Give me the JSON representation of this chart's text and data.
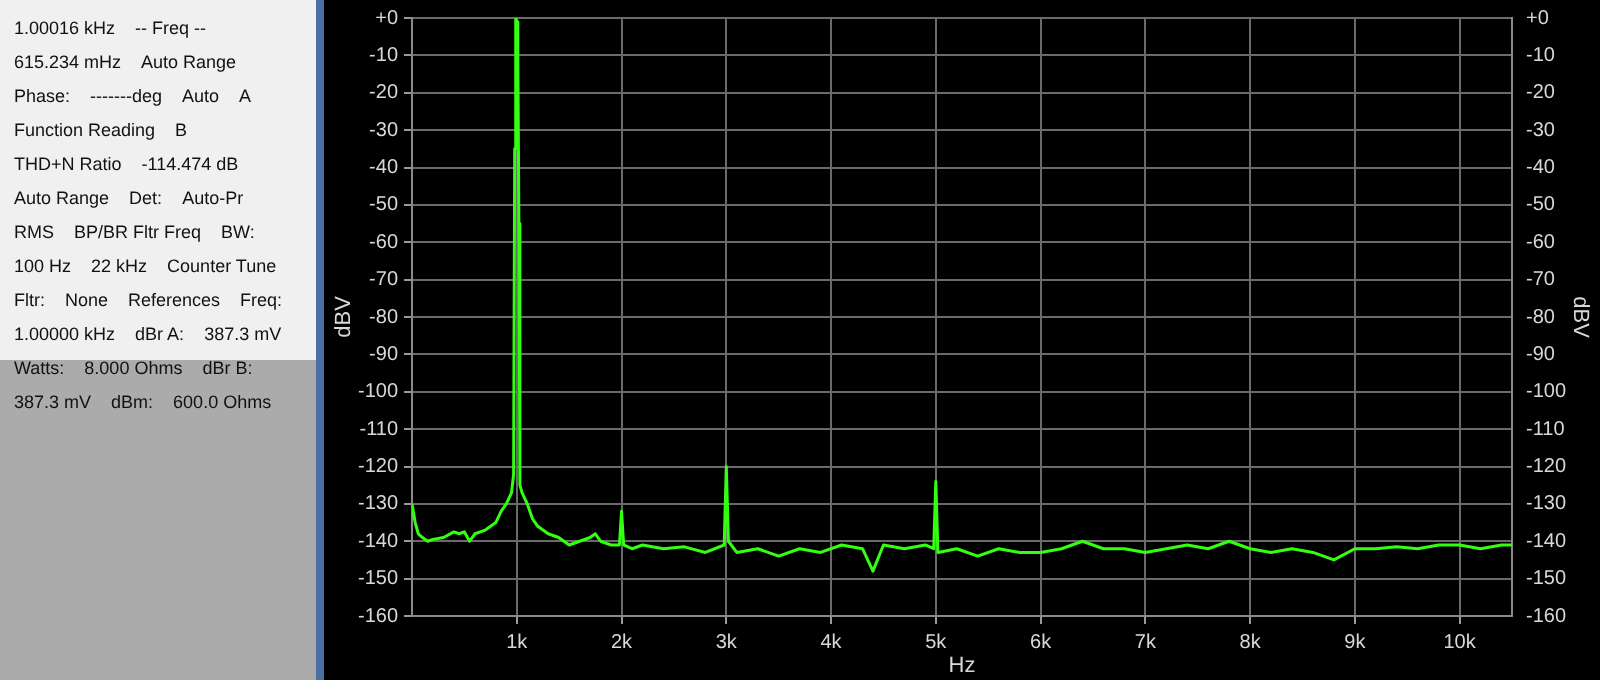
{
  "chart_data": [
    {
      "type": "other",
      "annotations": [
        "1.00016 kHz",
        "-- Freq --",
        "615.234 mHz",
        "Auto Range",
        "Phase:",
        "-------deg",
        "Auto",
        "A",
        "Function Reading",
        "B",
        "THD+N Ratio",
        "-114.474 dB",
        "Auto Range",
        "Det:",
        "Auto-Pr",
        "RMS",
        "BP/BR Fltr Freq",
        "BW:",
        "100 Hz",
        "22 kHz",
        "Counter Tune",
        "Fltr:",
        "None",
        "References",
        "Freq:",
        "1.00000 kHz",
        "dBr A:",
        "387.3 mV",
        "Watts:",
        "8.000 Ohms",
        "dBr B:",
        "387.3 mV",
        "dBm:",
        "600.0 Ohms"
      ]
    },
    {
      "type": "line",
      "xlabel": "Hz",
      "ylabel": "dBV",
      "y2label": "dBV",
      "grid": true,
      "legend": false,
      "marker": "none",
      "xlim": [
        0,
        10500
      ],
      "xticks": [
        {
          "value": 1000,
          "label": "1k"
        },
        {
          "value": 2000,
          "label": "2k"
        },
        {
          "value": 3000,
          "label": "3k"
        },
        {
          "value": 4000,
          "label": "4k"
        },
        {
          "value": 5000,
          "label": "5k"
        },
        {
          "value": 6000,
          "label": "6k"
        },
        {
          "value": 7000,
          "label": "7k"
        },
        {
          "value": 8000,
          "label": "8k"
        },
        {
          "value": 9000,
          "label": "9k"
        },
        {
          "value": 10000,
          "label": "10k"
        }
      ],
      "ylim": [
        -160,
        0
      ],
      "yticks": [
        {
          "value": 0,
          "label": "+0"
        },
        -10,
        -20,
        -30,
        -40,
        -50,
        -60,
        -70,
        -80,
        -90,
        -100,
        -110,
        -120,
        -130,
        -140,
        -150,
        -160
      ],
      "y2lim": [
        -160,
        0
      ],
      "y2ticks": [
        {
          "value": 0,
          "label": "+0"
        },
        -10,
        -20,
        -30,
        -40,
        -50,
        -60,
        -70,
        -80,
        -90,
        -100,
        -110,
        -120,
        -130,
        -140,
        -150,
        -160
      ],
      "series": [
        {
          "color": "#33ff11",
          "x": [
            0,
            30,
            60,
            100,
            150,
            200,
            300,
            400,
            450,
            500,
            550,
            600,
            700,
            800,
            850,
            900,
            950,
            970,
            980,
            990,
            1000,
            1010,
            1020,
            1030,
            1050,
            1100,
            1150,
            1200,
            1300,
            1400,
            1500,
            1600,
            1700,
            1750,
            1800,
            1900,
            1980,
            2000,
            2020,
            2100,
            2200,
            2400,
            2600,
            2800,
            2980,
            3000,
            3020,
            3100,
            3300,
            3500,
            3700,
            3900,
            4100,
            4300,
            4400,
            4500,
            4700,
            4900,
            4980,
            5000,
            5020,
            5200,
            5400,
            5600,
            5800,
            6000,
            6200,
            6400,
            6600,
            6800,
            7000,
            7200,
            7400,
            7600,
            7800,
            8000,
            8200,
            8400,
            8600,
            8800,
            9000,
            9200,
            9400,
            9600,
            9800,
            10000,
            10200,
            10400,
            10500
          ],
          "values": [
            -130,
            -135,
            -138,
            -139,
            -140,
            -139.5,
            -139,
            -137.5,
            -138,
            -137.5,
            -140,
            -138,
            -137,
            -135,
            -132,
            -130,
            -127,
            -122,
            -35,
            0,
            -1,
            -10,
            -55,
            -125,
            -127,
            -130,
            -134,
            -136,
            -138,
            -139,
            -141,
            -140,
            -139,
            -138,
            -140,
            -141,
            -141,
            -132,
            -141,
            -142,
            -141,
            -142,
            -141.5,
            -143,
            -141,
            -120,
            -140,
            -143,
            -142,
            -144,
            -142,
            -143,
            -141,
            -142,
            -148,
            -141,
            -142,
            -141,
            -142,
            -124,
            -143,
            -142,
            -144,
            -142,
            -143,
            -143,
            -142,
            -140,
            -142,
            -142,
            -143,
            -142,
            -141,
            -142,
            -140,
            -142,
            -143,
            -142,
            -143,
            -145,
            -142,
            -142,
            -141.5,
            -142,
            -141,
            -141,
            -142,
            -141,
            -141
          ]
        }
      ]
    }
  ]
}
